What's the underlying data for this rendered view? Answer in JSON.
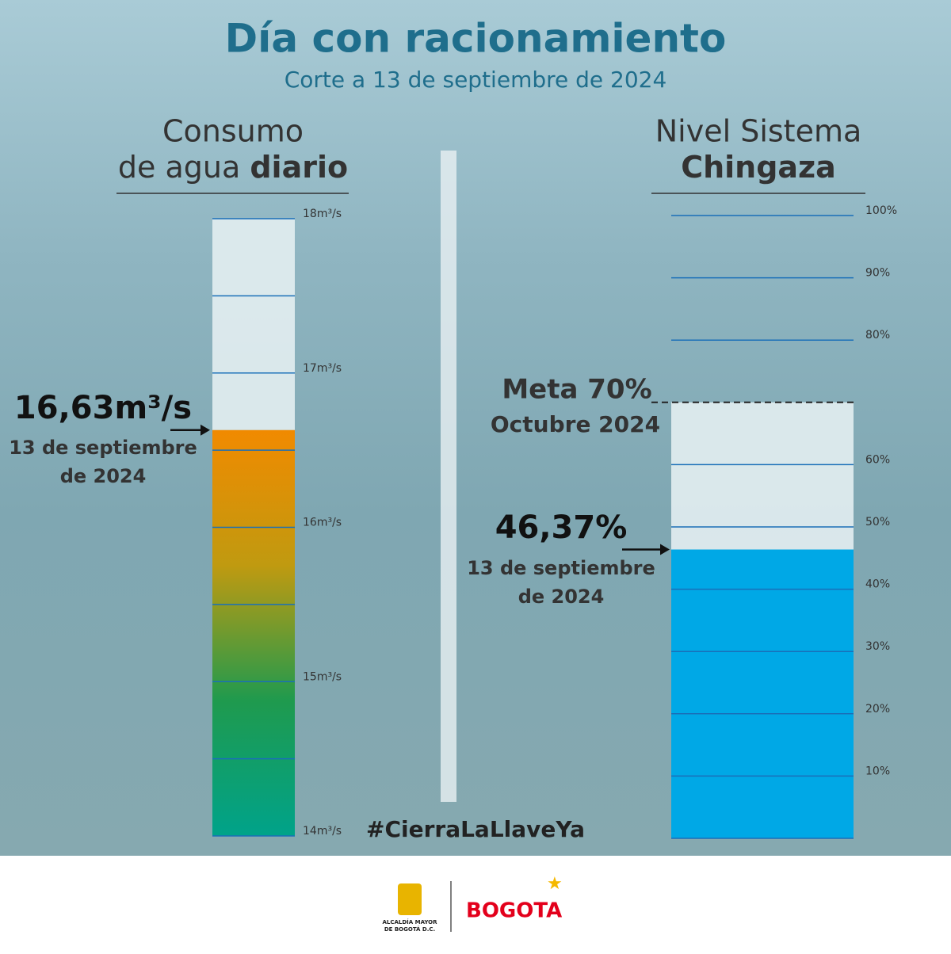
{
  "header": {
    "title": "Día con racionamiento",
    "subtitle": "Corte a 13 de septiembre de 2024"
  },
  "hashtag": "#CierraLaLlaveYa",
  "footer": {
    "alcaldia_line1": "ALCALDÍA MAYOR",
    "alcaldia_line2": "DE BOGOTÁ D.C.",
    "brand": "BOGOTA"
  },
  "chart_data": [
    {
      "type": "gauge",
      "title_line1": "Consumo",
      "title_line2": "de agua",
      "title_bold": "diario",
      "values": [
        16.63
      ],
      "value_labels": [
        "16,63m³/s"
      ],
      "date_line1": "13 de septiembre",
      "date_line2": "de 2024",
      "ylim": [
        14,
        18
      ],
      "yticks": [
        {
          "value": 14,
          "label": "14m³/s"
        },
        {
          "value": 15,
          "label": "15m³/s"
        },
        {
          "value": 16,
          "label": "16m³/s"
        },
        {
          "value": 17,
          "label": "17m³/s"
        },
        {
          "value": 18,
          "label": "18m³/s"
        }
      ],
      "extra_gridlines": [
        14.5,
        15.5,
        16.5,
        17.5
      ],
      "fill_colors": [
        "#f18a00",
        "#c09a10",
        "#1f9a4e",
        "#00a38a"
      ],
      "empty_color": "#e3eef1",
      "grid_color": "#1a6fb8"
    },
    {
      "type": "gauge",
      "title_line1": "Nivel Sistema",
      "title_line2": "",
      "title_bold": "Chingaza",
      "values": [
        46.37
      ],
      "value_labels": [
        "46,37%"
      ],
      "date_line1": "13 de septiembre",
      "date_line2": "de 2024",
      "target": 70,
      "target_label": "Meta 70%",
      "target_date": "Octubre 2024",
      "ylim": [
        0,
        100
      ],
      "yticks": [
        {
          "value": 10,
          "label": "10%"
        },
        {
          "value": 20,
          "label": "20%"
        },
        {
          "value": 30,
          "label": "30%"
        },
        {
          "value": 40,
          "label": "40%"
        },
        {
          "value": 50,
          "label": "50%"
        },
        {
          "value": 60,
          "label": "60%"
        },
        {
          "value": 80,
          "label": "80%"
        },
        {
          "value": 90,
          "label": "90%"
        },
        {
          "value": 100,
          "label": "100%"
        }
      ],
      "extra_gridlines": [
        0
      ],
      "fill_colors": [
        "#00a8e6"
      ],
      "empty_color": "#e3eef1",
      "grid_color": "#1a6fb8"
    }
  ]
}
